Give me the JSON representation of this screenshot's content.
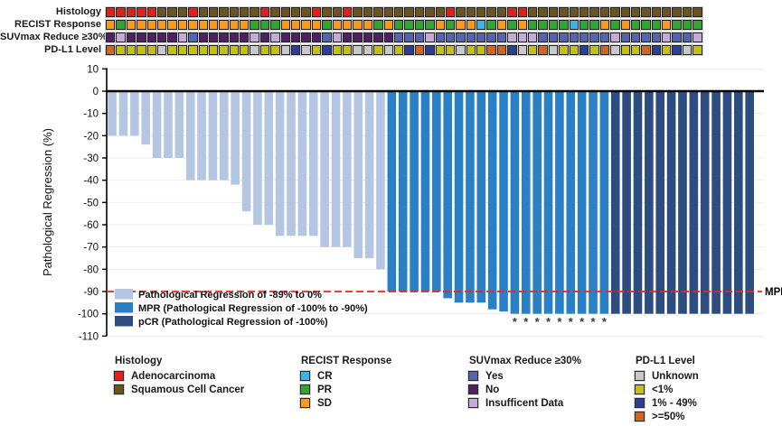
{
  "page": {
    "background": "#ffffff"
  },
  "tracks": {
    "rows": [
      {
        "label": "Histology",
        "values": [
          "A",
          "A",
          "A",
          "A",
          "A",
          "S",
          "S",
          "S",
          "A",
          "S",
          "S",
          "S",
          "S",
          "S",
          "S",
          "A",
          "S",
          "S",
          "S",
          "S",
          "A",
          "S",
          "S",
          "A",
          "S",
          "S",
          "S",
          "S",
          "S",
          "S",
          "S",
          "S",
          "S",
          "A",
          "S",
          "S",
          "S",
          "S",
          "S",
          "A",
          "A",
          "S",
          "S",
          "S",
          "S",
          "S",
          "S",
          "S",
          "S",
          "S",
          "S",
          "S",
          "S",
          "S",
          "S",
          "S",
          "S",
          "S"
        ]
      },
      {
        "label": "RECIST Response",
        "values": [
          "D",
          "P",
          "D",
          "D",
          "D",
          "D",
          "D",
          "D",
          "D",
          "D",
          "D",
          "D",
          "D",
          "D",
          "P",
          "P",
          "P",
          "D",
          "D",
          "D",
          "D",
          "P",
          "D",
          "D",
          "D",
          "D",
          "P",
          "D",
          "P",
          "P",
          "P",
          "P",
          "D",
          "P",
          "D",
          "D",
          "C",
          "P",
          "D",
          "P",
          "D",
          "P",
          "P",
          "P",
          "P",
          "C",
          "P",
          "P",
          "D",
          "P",
          "D",
          "P",
          "P",
          "P",
          "D",
          "P",
          "P",
          "P"
        ]
      },
      {
        "label": "SUVmax Reduce ≥30%",
        "values": [
          "N",
          "I",
          "N",
          "N",
          "N",
          "N",
          "N",
          "I",
          "Y",
          "N",
          "N",
          "N",
          "N",
          "N",
          "I",
          "N",
          "I",
          "N",
          "N",
          "N",
          "N",
          "Y",
          "I",
          "N",
          "N",
          "N",
          "N",
          "N",
          "Y",
          "Y",
          "Y",
          "I",
          "Y",
          "Y",
          "Y",
          "Y",
          "Y",
          "Y",
          "Y",
          "I",
          "I",
          "I",
          "Y",
          "Y",
          "Y",
          "Y",
          "Y",
          "Y",
          "Y",
          "I",
          "Y",
          "Y",
          "Y",
          "Y",
          "I",
          "Y",
          "Y",
          "I"
        ]
      },
      {
        "label": "PD-L1 Level",
        "values": [
          "H",
          "L",
          "L",
          "L",
          "L",
          "U",
          "L",
          "L",
          "L",
          "L",
          "L",
          "L",
          "L",
          "L",
          "U",
          "L",
          "L",
          "U",
          "M",
          "U",
          "L",
          "M",
          "L",
          "L",
          "U",
          "U",
          "L",
          "U",
          "L",
          "M",
          "H",
          "M",
          "L",
          "L",
          "U",
          "L",
          "L",
          "H",
          "H",
          "M",
          "U",
          "L",
          "H",
          "U",
          "L",
          "L",
          "M",
          "L",
          "H",
          "U",
          "L",
          "L",
          "H",
          "M",
          "L",
          "M",
          "U",
          "L"
        ]
      }
    ],
    "palette": {
      "A": "#e0211a",
      "S": "#6b5420",
      "C": "#3cb4e6",
      "P": "#33a532",
      "D": "#f89b1c",
      "Y": "#5464ad",
      "N": "#4e2064",
      "I": "#c6abd8",
      "U": "#c8c8c8",
      "L": "#c3c214",
      "M": "#2c3e97",
      "H": "#d2661f"
    }
  },
  "chart_data": {
    "type": "bar",
    "title": "",
    "xlabel": "",
    "ylabel": "Pathological Regression (%)",
    "ylim": [
      -110,
      10
    ],
    "yticks": [
      10,
      0,
      -10,
      -20,
      -30,
      -40,
      -50,
      -60,
      -70,
      -80,
      -90,
      -100,
      -110
    ],
    "grid": true,
    "bar_count": 58,
    "values": [
      -20,
      -20,
      -20,
      -24,
      -30,
      -30,
      -30,
      -40,
      -40,
      -40,
      -40,
      -42,
      -54,
      -60,
      -60,
      -65,
      -65,
      -65,
      -65,
      -70,
      -70,
      -70,
      -75,
      -75,
      -80,
      -90,
      -90,
      -90,
      -90,
      -90,
      -93,
      -95,
      -95,
      -95,
      -98,
      -99,
      -100,
      -100,
      -100,
      -100,
      -100,
      -100,
      -100,
      -100,
      -100,
      -100,
      -100,
      -100,
      -100,
      -100,
      -100,
      -100,
      -100,
      -100,
      -100,
      -100,
      -100,
      -100
    ],
    "bar_groups": [
      "reg",
      "reg",
      "reg",
      "reg",
      "reg",
      "reg",
      "reg",
      "reg",
      "reg",
      "reg",
      "reg",
      "reg",
      "reg",
      "reg",
      "reg",
      "reg",
      "reg",
      "reg",
      "reg",
      "reg",
      "reg",
      "reg",
      "reg",
      "reg",
      "reg",
      "mpr",
      "mpr",
      "mpr",
      "mpr",
      "mpr",
      "mpr",
      "mpr",
      "mpr",
      "mpr",
      "mpr",
      "mpr",
      "mpr",
      "mpr",
      "mpr",
      "mpr",
      "mpr",
      "mpr",
      "mpr",
      "mpr",
      "mpr",
      "pcr",
      "pcr",
      "pcr",
      "pcr",
      "pcr",
      "pcr",
      "pcr",
      "pcr",
      "pcr",
      "pcr",
      "pcr",
      "pcr",
      "pcr"
    ],
    "group_colors": {
      "reg": "#b5c6e2",
      "mpr": "#2a80c5",
      "pcr": "#2d4c80"
    },
    "asterisk_bars_1based": [
      37,
      38,
      39,
      40,
      41,
      42,
      43,
      44,
      45
    ],
    "asterisk_symbol": "*",
    "reference_line": {
      "value": -90,
      "label": "MPR",
      "color": "#e8251f",
      "style": "dashed"
    },
    "legend_position": "inside-bottom-left",
    "legend": [
      {
        "key": "reg",
        "label": "Pathological Regression of -89% to 0%"
      },
      {
        "key": "mpr",
        "label": "MPR (Pathological Regression of -100% to -90%)"
      },
      {
        "key": "pcr",
        "label": "pCR (Pathological Regression of -100%)"
      }
    ]
  },
  "legends": {
    "groups": [
      {
        "title": "Histology",
        "items": [
          {
            "key": "A",
            "label": "Adenocarcinoma"
          },
          {
            "key": "S",
            "label": "Squamous Cell Cancer"
          }
        ]
      },
      {
        "title": "RECIST Response",
        "items": [
          {
            "key": "C",
            "label": "CR"
          },
          {
            "key": "P",
            "label": "PR"
          },
          {
            "key": "D",
            "label": "SD"
          }
        ]
      },
      {
        "title": "SUVmax Reduce ≥30%",
        "items": [
          {
            "key": "Y",
            "label": "Yes"
          },
          {
            "key": "N",
            "label": "No"
          },
          {
            "key": "I",
            "label": "Insufficent Data"
          }
        ]
      },
      {
        "title": "PD-L1 Level",
        "items": [
          {
            "key": "U",
            "label": "Unknown"
          },
          {
            "key": "L",
            "label": "<1%"
          },
          {
            "key": "M",
            "label": "1% - 49%"
          },
          {
            "key": "H",
            "label": ">=50%"
          }
        ]
      }
    ]
  }
}
